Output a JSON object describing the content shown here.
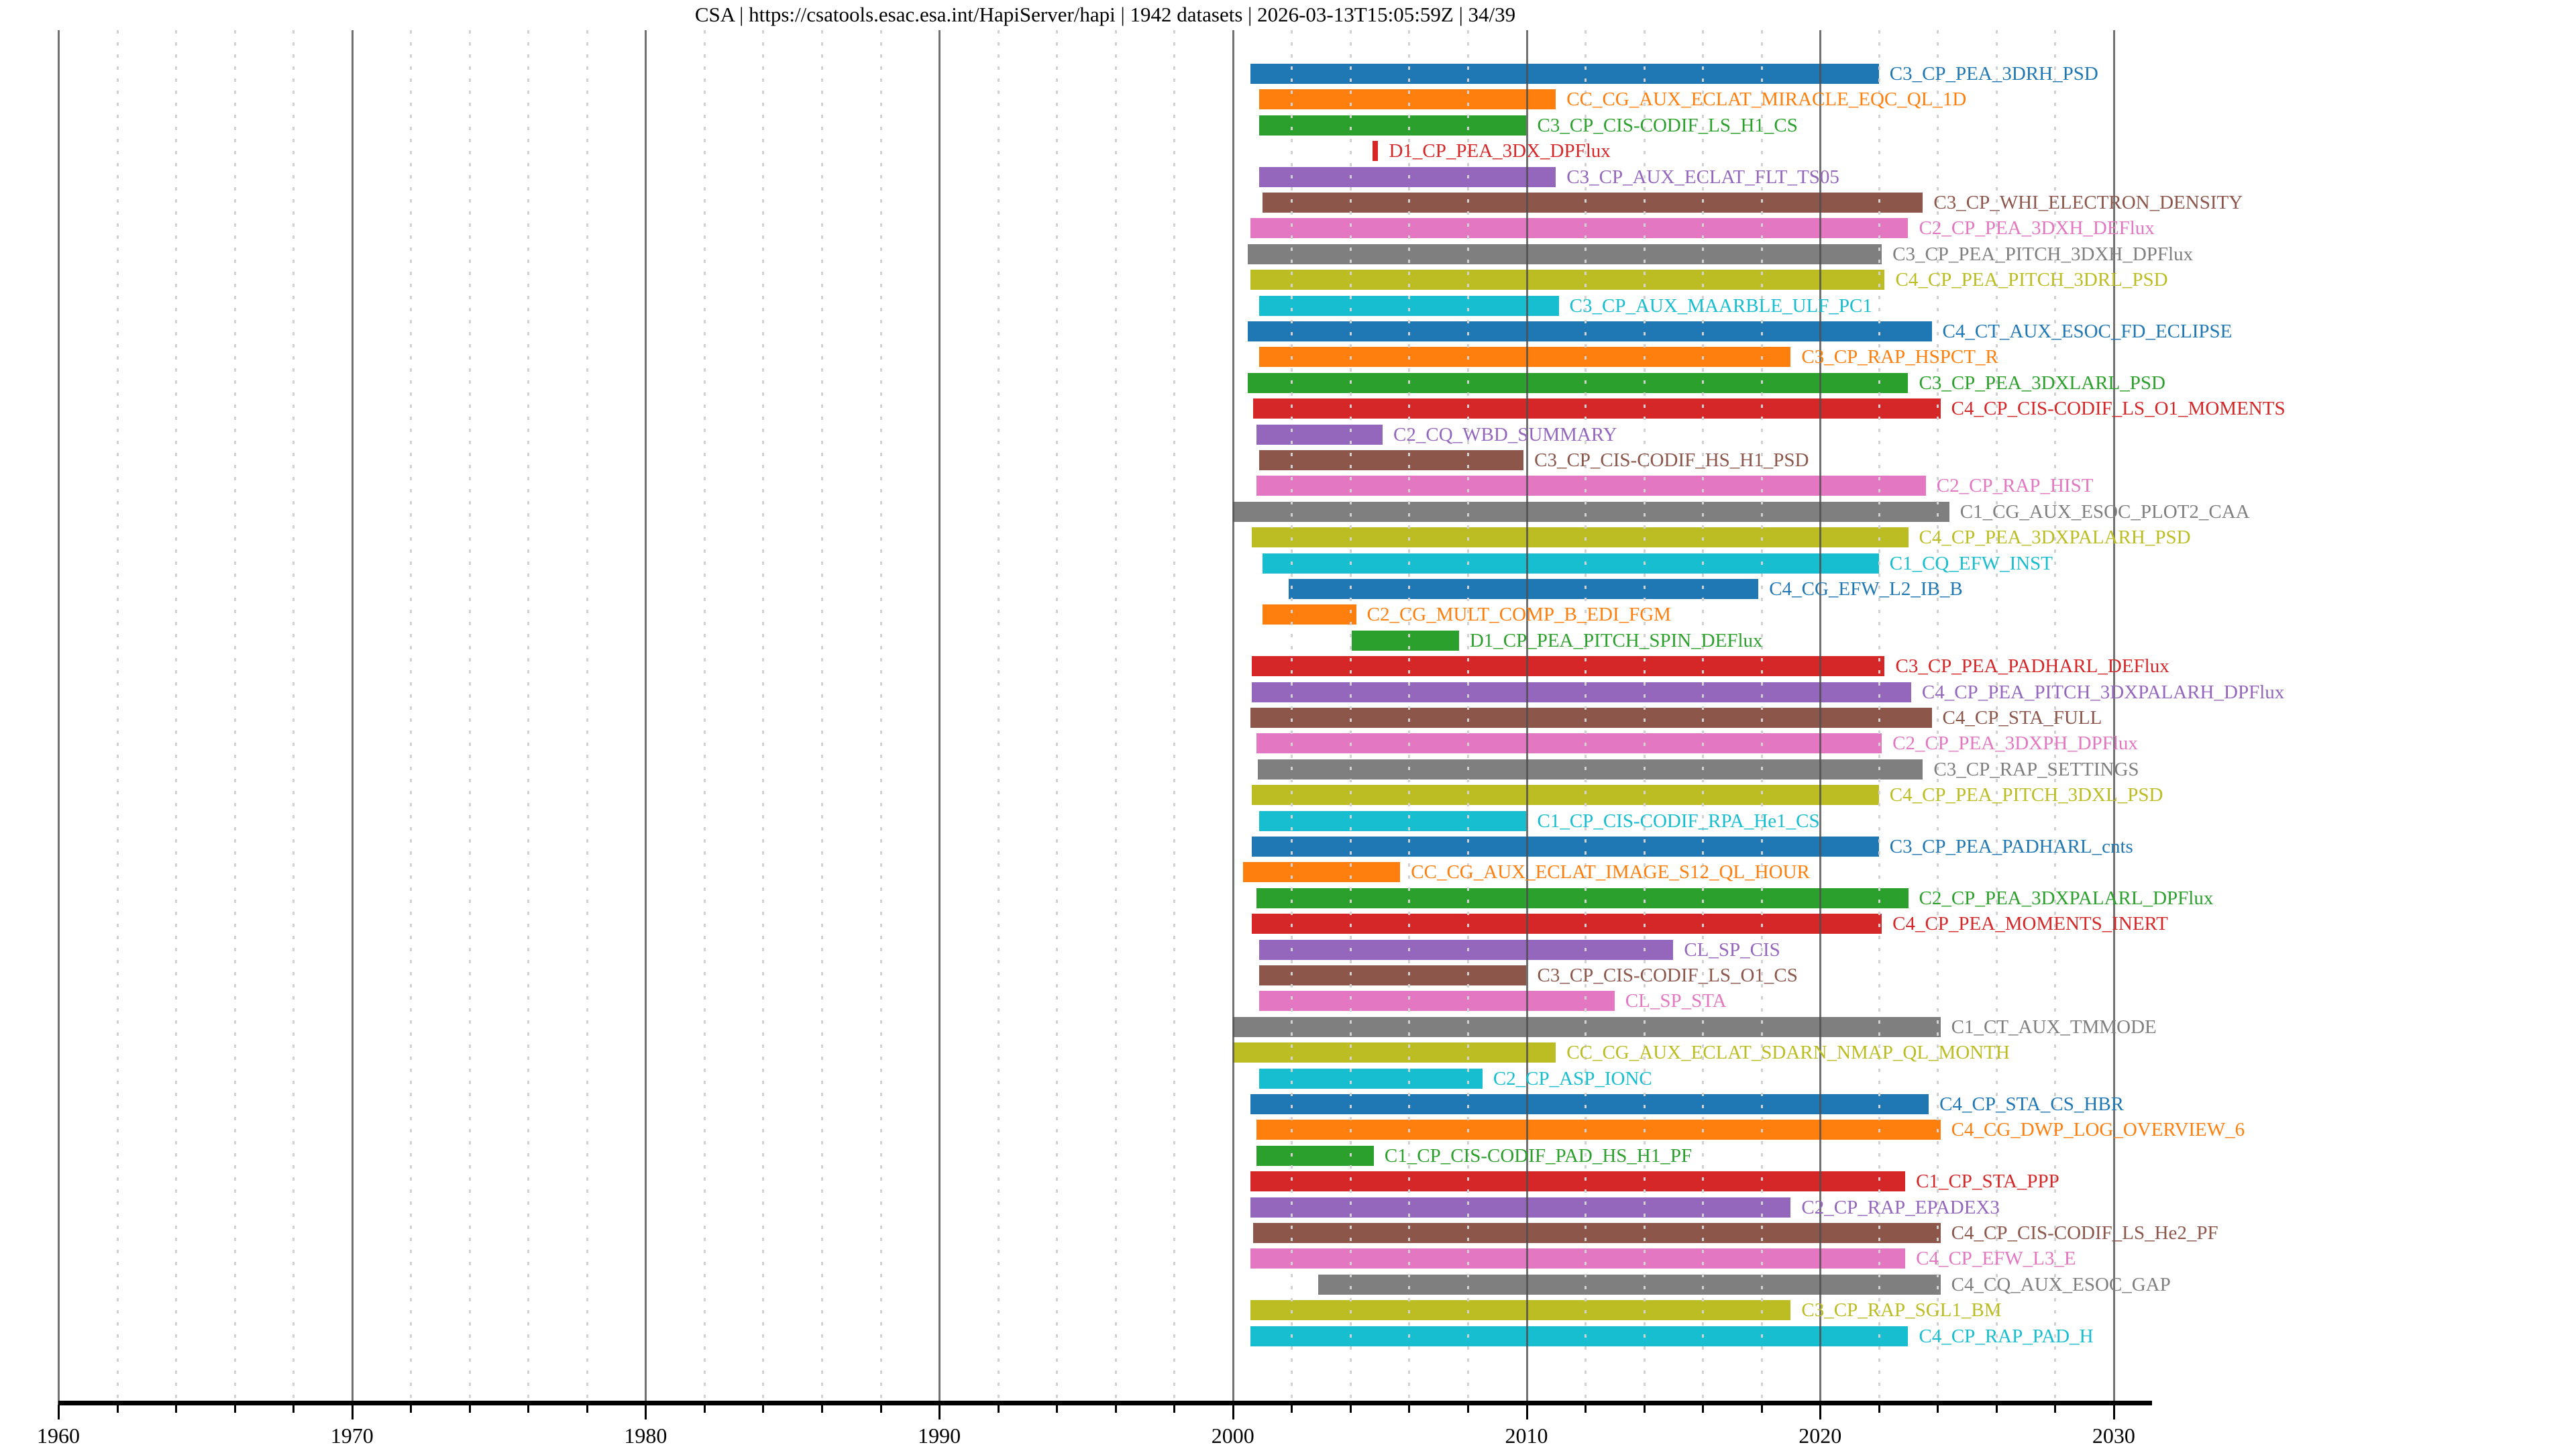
{
  "title": "CSA | https://csatools.esac.esa.int/HapiServer/hapi | 1942 datasets | 2026-03-13T15:05:59Z | 34/39",
  "chart_data": {
    "type": "bar",
    "subtype": "horizontal-timeline-gantt",
    "title": "CSA | https://csatools.esac.esa.int/HapiServer/hapi | 1942 datasets | 2026-03-13T15:05:59Z | 34/39",
    "xlabel": "",
    "ylabel": "",
    "xlim": [
      1960,
      2031.3
    ],
    "x_ticks_major": [
      1960,
      1970,
      1980,
      1990,
      2000,
      2010,
      2020,
      2030
    ],
    "x_minor_step": 2,
    "grid": {
      "major_solid": true,
      "minor_dashed": true
    },
    "legend": "none",
    "palette": {
      "blue": "#1f77b4",
      "orange": "#ff7f0e",
      "green": "#2ca02c",
      "red": "#d62728",
      "purple": "#9467bd",
      "brown": "#8c564b",
      "pink": "#e377c2",
      "gray": "#7f7f7f",
      "olive": "#bcbd22",
      "cyan": "#17becf"
    },
    "rows": [
      {
        "label": "C3_CP_PEA_3DRH_PSD",
        "color": "blue",
        "start": 2000.6,
        "end": 2022.0
      },
      {
        "label": "CC_CG_AUX_ECLAT_MIRACLE_EQC_QL_1D",
        "color": "orange",
        "start": 2000.9,
        "end": 2011.0
      },
      {
        "label": "C3_CP_CIS-CODIF_LS_H1_CS",
        "color": "green",
        "start": 2000.9,
        "end": 2010.0
      },
      {
        "label": "D1_CP_PEA_3DX_DPFlux",
        "color": "red",
        "start": 2004.75,
        "end": 2004.95
      },
      {
        "label": "C3_CP_AUX_ECLAT_FLT_TS05",
        "color": "purple",
        "start": 2000.9,
        "end": 2011.0
      },
      {
        "label": "C3_CP_WHI_ELECTRON_DENSITY",
        "color": "brown",
        "start": 2001.0,
        "end": 2023.5
      },
      {
        "label": "C2_CP_PEA_3DXH_DEFlux",
        "color": "pink",
        "start": 2000.6,
        "end": 2023.0
      },
      {
        "label": "C3_CP_PEA_PITCH_3DXH_DPFlux",
        "color": "gray",
        "start": 2000.5,
        "end": 2022.1
      },
      {
        "label": "C4_CP_PEA_PITCH_3DRL_PSD",
        "color": "olive",
        "start": 2000.6,
        "end": 2022.2
      },
      {
        "label": "C3_CP_AUX_MAARBLE_ULF_PC1",
        "color": "cyan",
        "start": 2000.9,
        "end": 2011.1
      },
      {
        "label": "C4_CT_AUX_ESOC_FD_ECLIPSE",
        "color": "blue",
        "start": 2000.5,
        "end": 2023.8
      },
      {
        "label": "C3_CP_RAP_HSPCT_R",
        "color": "orange",
        "start": 2000.9,
        "end": 2019.0
      },
      {
        "label": "C3_CP_PEA_3DXLARL_PSD",
        "color": "green",
        "start": 2000.5,
        "end": 2023.0
      },
      {
        "label": "C4_CP_CIS-CODIF_LS_O1_MOMENTS",
        "color": "red",
        "start": 2000.7,
        "end": 2024.1
      },
      {
        "label": "C2_CQ_WBD_SUMMARY",
        "color": "purple",
        "start": 2000.8,
        "end": 2005.1
      },
      {
        "label": "C3_CP_CIS-CODIF_HS_H1_PSD",
        "color": "brown",
        "start": 2000.9,
        "end": 2009.9
      },
      {
        "label": "C2_CP_RAP_HIST",
        "color": "pink",
        "start": 2000.8,
        "end": 2023.6
      },
      {
        "label": "C1_CG_AUX_ESOC_PLOT2_CAA",
        "color": "gray",
        "start": 2000.0,
        "end": 2024.4
      },
      {
        "label": "C4_CP_PEA_3DXPALARH_PSD",
        "color": "olive",
        "start": 2000.65,
        "end": 2023.0
      },
      {
        "label": "C1_CQ_EFW_INST",
        "color": "cyan",
        "start": 2001.0,
        "end": 2022.0
      },
      {
        "label": "C4_CG_EFW_L2_IB_B",
        "color": "blue",
        "start": 2001.9,
        "end": 2017.9
      },
      {
        "label": "C2_CG_MULT_COMP_B_EDI_FGM",
        "color": "orange",
        "start": 2001.0,
        "end": 2004.2
      },
      {
        "label": "D1_CP_PEA_PITCH_SPIN_DEFlux",
        "color": "green",
        "start": 2004.05,
        "end": 2007.7
      },
      {
        "label": "C3_CP_PEA_PADHARL_DEFlux",
        "color": "red",
        "start": 2000.65,
        "end": 2022.2
      },
      {
        "label": "C4_CP_PEA_PITCH_3DXPALARH_DPFlux",
        "color": "purple",
        "start": 2000.65,
        "end": 2023.1
      },
      {
        "label": "C4_CP_STA_FULL",
        "color": "brown",
        "start": 2000.6,
        "end": 2023.8
      },
      {
        "label": "C2_CP_PEA_3DXPH_DPFlux",
        "color": "pink",
        "start": 2000.8,
        "end": 2022.1
      },
      {
        "label": "C3_CP_RAP_SETTINGS",
        "color": "gray",
        "start": 2000.85,
        "end": 2023.5
      },
      {
        "label": "C4_CP_PEA_PITCH_3DXL_PSD",
        "color": "olive",
        "start": 2000.65,
        "end": 2022.0
      },
      {
        "label": "C1_CP_CIS-CODIF_RPA_He1_CS",
        "color": "cyan",
        "start": 2000.9,
        "end": 2010.0
      },
      {
        "label": "C3_CP_PEA_PADHARL_cnts",
        "color": "blue",
        "start": 2000.65,
        "end": 2022.0
      },
      {
        "label": "CC_CG_AUX_ECLAT_IMAGE_S12_QL_HOUR",
        "color": "orange",
        "start": 2000.35,
        "end": 2005.7
      },
      {
        "label": "C2_CP_PEA_3DXPALARL_DPFlux",
        "color": "green",
        "start": 2000.8,
        "end": 2023.0
      },
      {
        "label": "C4_CP_PEA_MOMENTS_INERT",
        "color": "red",
        "start": 2000.65,
        "end": 2022.1
      },
      {
        "label": "CL_SP_CIS",
        "color": "purple",
        "start": 2000.9,
        "end": 2015.0
      },
      {
        "label": "C3_CP_CIS-CODIF_LS_O1_CS",
        "color": "brown",
        "start": 2000.9,
        "end": 2010.0
      },
      {
        "label": "CL_SP_STA",
        "color": "pink",
        "start": 2000.9,
        "end": 2013.0
      },
      {
        "label": "C1_CT_AUX_TMMODE",
        "color": "gray",
        "start": 2000.0,
        "end": 2024.1
      },
      {
        "label": "CC_CG_AUX_ECLAT_SDARN_NMAP_QL_MONTH",
        "color": "olive",
        "start": 2000.0,
        "end": 2011.0
      },
      {
        "label": "C2_CP_ASP_IONC",
        "color": "cyan",
        "start": 2000.9,
        "end": 2008.5
      },
      {
        "label": "C4_CP_STA_CS_HBR",
        "color": "blue",
        "start": 2000.6,
        "end": 2023.7
      },
      {
        "label": "C4_CG_DWP_LOG_OVERVIEW_6",
        "color": "orange",
        "start": 2000.8,
        "end": 2024.1
      },
      {
        "label": "C1_CP_CIS-CODIF_PAD_HS_H1_PF",
        "color": "green",
        "start": 2000.8,
        "end": 2004.8
      },
      {
        "label": "C1_CP_STA_PPP",
        "color": "red",
        "start": 2000.6,
        "end": 2022.9
      },
      {
        "label": "C2_CP_RAP_EPADEX3",
        "color": "purple",
        "start": 2000.6,
        "end": 2019.0
      },
      {
        "label": "C4_CP_CIS-CODIF_LS_He2_PF",
        "color": "brown",
        "start": 2000.7,
        "end": 2024.1
      },
      {
        "label": "C4_CP_EFW_L3_E",
        "color": "pink",
        "start": 2000.6,
        "end": 2022.9
      },
      {
        "label": "C4_CQ_AUX_ESOC_GAP",
        "color": "gray",
        "start": 2002.9,
        "end": 2024.1
      },
      {
        "label": "C3_CP_RAP_SGL1_BM",
        "color": "olive",
        "start": 2000.6,
        "end": 2019.0
      },
      {
        "label": "C4_CP_RAP_PAD_H",
        "color": "cyan",
        "start": 2000.6,
        "end": 2023.0
      }
    ]
  }
}
